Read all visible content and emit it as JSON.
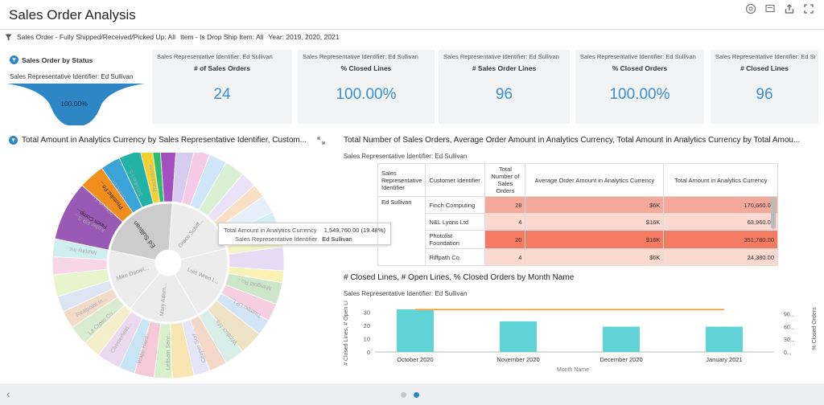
{
  "header": {
    "title": "Sales Order Analysis",
    "filters": [
      "Sales Order - Fully Shipped/Received/Picked Up: All",
      "Item - Is Drop Ship Item: All",
      "Year: 2019, 2020, 2021"
    ],
    "icons": [
      "help-icon",
      "comment-icon",
      "share-icon",
      "expand-icon"
    ]
  },
  "status_card": {
    "title": "Sales Order by Status",
    "subtitle": "Sales Representative Identifier: Ed Sullivan",
    "value": "100.00%",
    "fill_fraction": 1.0,
    "color": "#2f86c5"
  },
  "kpis": [
    {
      "head": "Sales Representative Identifier: Ed Sullivan",
      "label": "# of Sales Orders",
      "value": "24"
    },
    {
      "head": "Sales Representative Identifier: Ed Sullivan",
      "label": "% Closed Lines",
      "value": "100.00%"
    },
    {
      "head": "Sales Representative Identifier: Ed Sullivan",
      "label": "# Sales Order Lines",
      "value": "96"
    },
    {
      "head": "Sales Representative Identifier: Ed Sullivan",
      "label": "% Closed Orders",
      "value": "100.00%"
    },
    {
      "head": "Sales Representative Identifier: Ed Sullivan",
      "label": "# Closed Lines",
      "value": "96"
    }
  ],
  "sunburst": {
    "title": "Total Amount in Analytics Currency by Sales Representative Identifier, Custom...",
    "inner_labels": [
      "Ed Sullivan",
      "Grace Schiff...",
      "Luis Wren I...",
      "Mary Adam...",
      "Mike Daniel..."
    ],
    "outer_labels": [
      "Finch Comp...",
      "Photolist Fo...",
      "Blackstone...",
      "Schubert S...",
      "Grand LP",
      "Riffpath Lt...",
      "Keller PR S...",
      "Murphy Inc...",
      "Realpoint In...",
      "La Cross Co...",
      "Chesterfield...",
      "Wapp Hard...",
      "Lettsam Serv...",
      "Cooper Surr...",
      "Windsor Ma...",
      "Trumpo LP L...",
      "Mangold Ro..."
    ],
    "tooltip": {
      "metric_label": "Total Amount in Analytics Currency",
      "metric_value": "1,549,760.00 (19.48%)",
      "rep_label": "Sales Representative Identifier",
      "rep_value": "Ed Sullivan"
    }
  },
  "table": {
    "title": "Total Number of Sales Orders, Average Order Amount in Analytics Currency, Total Amount in Analytics Currency by Total Amou...",
    "subtitle": "Sales Representative Identifier: Ed Sullivan",
    "headers": [
      "Sales Representative Identifier",
      "Customer Identifier",
      "Total Number of Sales Orders",
      "Average Order Amount in Analytics Currency",
      "Total Amount in Analytics Currency"
    ],
    "rep": "Ed Sullivan",
    "rows": [
      {
        "customer": "Finch Computing",
        "orders": "28",
        "avg": "$6K",
        "total": "170,660.00",
        "color": "#f4a99a"
      },
      {
        "customer": "N&L Lyons Ltd",
        "orders": "4",
        "avg": "$16K",
        "total": "63,960.00",
        "color": "#fbd8d0"
      },
      {
        "customer": "Photolist Foundation",
        "orders": "20",
        "avg": "$18K",
        "total": "351,780.00",
        "color": "#f47a62"
      },
      {
        "customer": "Riffpath Co.",
        "orders": "4",
        "avg": "$6K",
        "total": "24,380.00",
        "color": "#fbd8d0"
      }
    ]
  },
  "combo_chart": {
    "title": "# Closed Lines, # Open Lines, % Closed Orders by Month Name",
    "subtitle": "Sales Representative Identifier: Ed Sullivan"
  },
  "chart_data": {
    "type": "bar",
    "categories": [
      "October 2020",
      "November 2020",
      "December 2020",
      "January 2021"
    ],
    "series": [
      {
        "values": [
          32,
          23,
          19,
          19
        ],
        "color": "#5fd4d6"
      },
      {
        "values": [
          100,
          100,
          100,
          100
        ],
        "type": "line",
        "axis": "right",
        "color": "#f4a13a"
      }
    ],
    "xlabel": "Month Name",
    "ylabel": "# Closed Lines, # Open Lines",
    "ylabel_right": "% Closed Orders",
    "ylim": [
      0,
      35
    ],
    "yticks": [
      "0",
      "10",
      "20",
      "30"
    ],
    "yticks_right": [
      "0...",
      "30...",
      "60...",
      "90..."
    ],
    "ylim_right": [
      0,
      110
    ]
  },
  "footer": {
    "back_icon": "chevron-left-icon",
    "pages": 2,
    "active_page": 2
  }
}
